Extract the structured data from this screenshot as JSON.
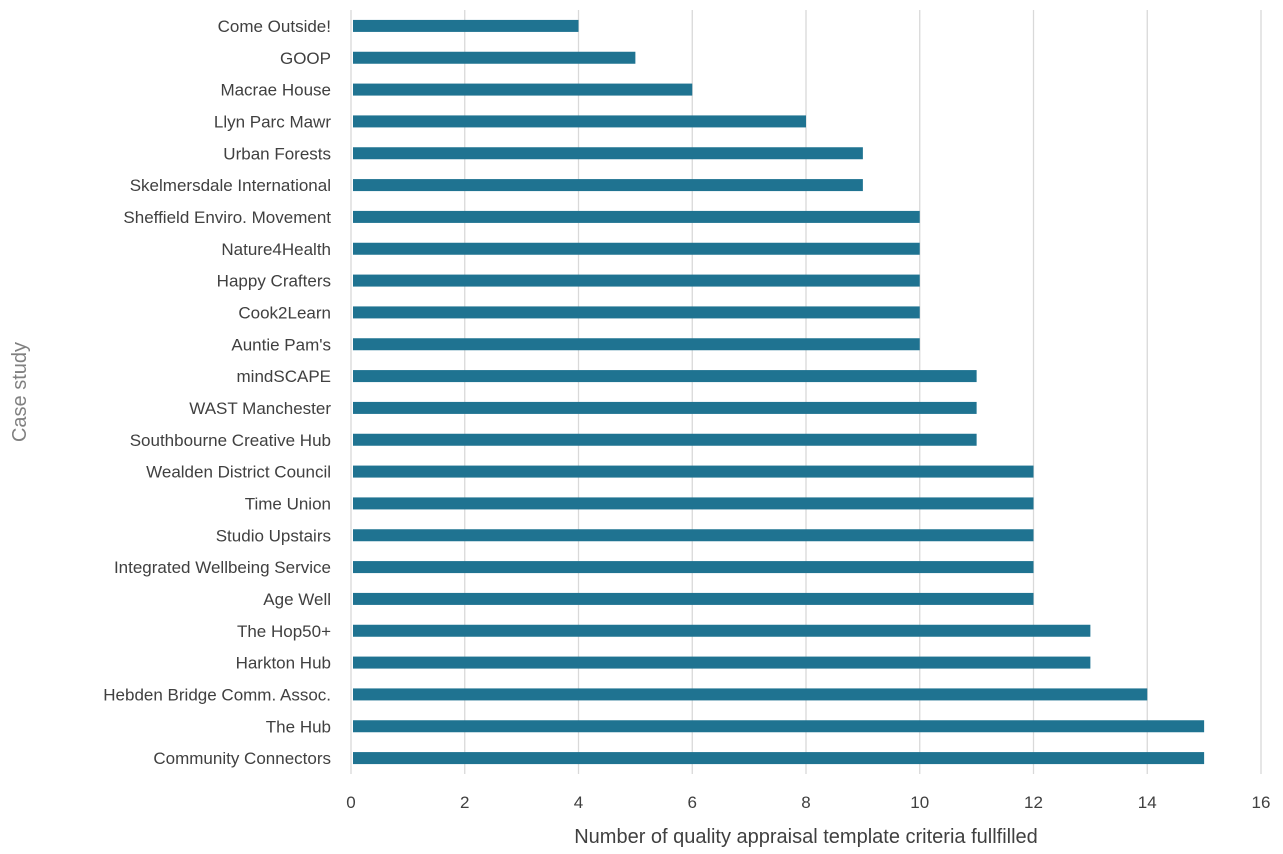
{
  "chart_data": {
    "type": "bar",
    "orientation": "horizontal",
    "title": "",
    "xlabel": "Number of quality appraisal template criteria fullfilled",
    "ylabel": "Case study",
    "xlim": [
      0,
      16
    ],
    "xticks": [
      0,
      2,
      4,
      6,
      8,
      10,
      12,
      14,
      16
    ],
    "grid": "vertical",
    "bar_color": "#1f7391",
    "categories": [
      "Come Outside!",
      "GOOP",
      "Macrae House",
      "Llyn Parc Mawr",
      "Urban Forests",
      "Skelmersdale International",
      "Sheffield Enviro. Movement",
      "Nature4Health",
      "Happy Crafters",
      "Cook2Learn",
      "Auntie Pam's",
      "mindSCAPE",
      "WAST Manchester",
      "Southbourne Creative Hub",
      "Wealden District Council",
      "Time Union",
      "Studio Upstairs",
      "Integrated Wellbeing Service",
      "Age Well",
      "The Hop50+",
      "Harkton Hub",
      "Hebden Bridge Comm. Assoc.",
      "The Hub",
      "Community Connectors"
    ],
    "values": [
      4,
      5,
      6,
      8,
      9,
      9,
      10,
      10,
      10,
      10,
      10,
      11,
      11,
      11,
      12,
      12,
      12,
      12,
      12,
      13,
      13,
      14,
      15,
      15
    ]
  }
}
